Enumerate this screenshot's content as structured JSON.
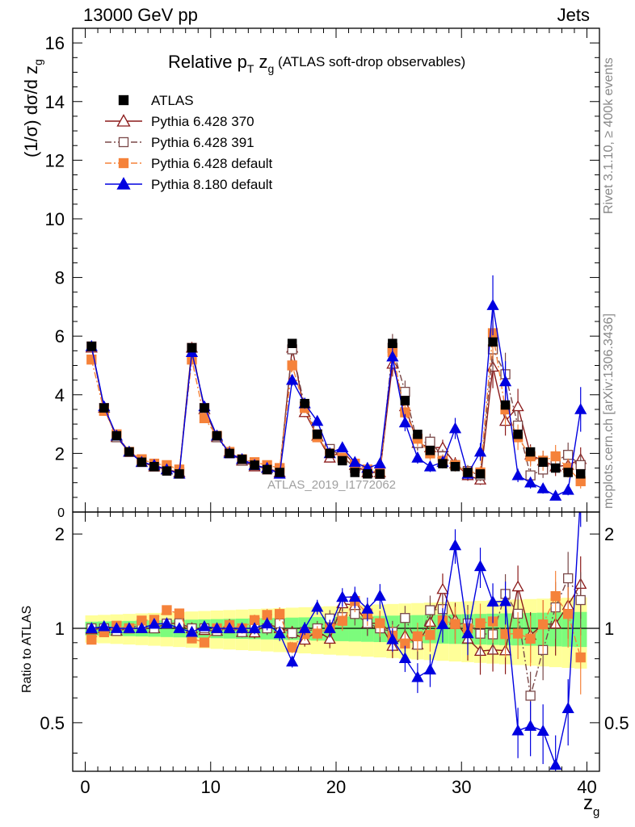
{
  "header": {
    "left": "13000 GeV pp",
    "right": "Jets"
  },
  "side": {
    "rivet": "Rivet 3.1.10, ≥ 400k events",
    "mcplots": "mcplots.cern.ch [arXiv:1306.3436]"
  },
  "chart_data": {
    "type": "scatter",
    "title_main": "Relative p",
    "title_sub": "T",
    "title_var": " z",
    "title_var_sub": "g",
    "title_paren": " (ATLAS soft-drop observables)",
    "watermark": "ATLAS_2019_I1772062",
    "ylabel": "(1/σ) dσ/d z",
    "ylabel_sub": "g",
    "ratio_ylabel": "Ratio to ATLAS",
    "xlabel": "z",
    "xlabel_sub": "g",
    "xlim": [
      -1,
      41
    ],
    "ylim": [
      0,
      16.5
    ],
    "ratio_ylim": [
      0.35,
      2.35
    ],
    "x_ticks": [
      "0",
      "10",
      "20",
      "30",
      "40"
    ],
    "y_ticks": [
      "2",
      "4",
      "6",
      "8",
      "10",
      "12",
      "14",
      "16"
    ],
    "y_tick_values": [
      2,
      4,
      6,
      8,
      10,
      12,
      14,
      16
    ],
    "ratio_ticks": [
      "0.5",
      "1",
      "2"
    ],
    "ratio_tick_values": [
      0.5,
      1,
      2
    ],
    "zero_label": "0",
    "x": [
      0.5,
      1.5,
      2.5,
      3.5,
      4.5,
      5.5,
      6.5,
      7.5,
      8.5,
      9.5,
      10.5,
      11.5,
      12.5,
      13.5,
      14.5,
      15.5,
      16.5,
      17.5,
      18.5,
      19.5,
      20.5,
      21.5,
      22.5,
      23.5,
      24.5,
      25.5,
      26.5,
      27.5,
      28.5,
      29.5,
      30.5,
      31.5,
      32.5,
      33.5,
      34.5,
      35.5,
      36.5,
      37.5,
      38.5,
      39.5
    ],
    "data": [
      5.65,
      3.55,
      2.6,
      2.05,
      1.7,
      1.55,
      1.4,
      1.3,
      5.6,
      3.55,
      2.6,
      2.0,
      1.8,
      1.6,
      1.45,
      1.35,
      5.75,
      3.7,
      2.65,
      2.0,
      1.75,
      1.35,
      1.3,
      1.3,
      5.75,
      3.8,
      2.65,
      2.1,
      1.65,
      1.55,
      1.35,
      1.3,
      5.8,
      3.65,
      2.65,
      2.05,
      1.7,
      1.5,
      1.35,
      1.3
    ],
    "series": [
      {
        "name": "Pythia 6.428 370",
        "color": "#8b1a1a",
        "marker": "triangle-open",
        "values": [
          5.6,
          3.55,
          2.55,
          2.05,
          1.7,
          1.55,
          1.45,
          1.35,
          5.6,
          3.5,
          2.55,
          2.05,
          1.75,
          1.55,
          1.5,
          1.35,
          5.6,
          3.4,
          2.6,
          1.85,
          2.1,
          1.6,
          1.35,
          1.35,
          5.05,
          3.6,
          2.35,
          2.2,
          2.2,
          1.65,
          1.25,
          1.1,
          4.95,
          3.1,
          3.6,
          1.95,
          1.75,
          1.55,
          1.6,
          1.8
        ]
      },
      {
        "name": "Pythia 6.428 391",
        "color": "#7a4848",
        "marker": "square-open",
        "values": [
          5.65,
          3.55,
          2.55,
          2.05,
          1.75,
          1.55,
          1.45,
          1.35,
          5.6,
          3.55,
          2.55,
          2.0,
          1.75,
          1.6,
          1.45,
          1.4,
          5.55,
          3.6,
          2.65,
          2.15,
          1.9,
          1.5,
          1.35,
          1.3,
          5.6,
          4.1,
          2.35,
          2.4,
          1.9,
          1.6,
          1.4,
          1.25,
          5.55,
          4.7,
          2.95,
          1.25,
          1.45,
          1.75,
          1.95,
          1.6
        ]
      },
      {
        "name": "Pythia 6.428 default",
        "color": "#f5823a",
        "marker": "square-filled",
        "values": [
          5.2,
          3.45,
          2.65,
          2.05,
          1.8,
          1.65,
          1.6,
          1.45,
          5.2,
          3.2,
          2.6,
          2.05,
          1.8,
          1.7,
          1.6,
          1.5,
          5.0,
          3.55,
          2.55,
          2.0,
          1.85,
          1.65,
          1.45,
          1.35,
          5.45,
          3.4,
          2.5,
          2.0,
          1.75,
          1.6,
          1.35,
          1.35,
          6.1,
          3.5,
          2.55,
          1.9,
          1.75,
          1.9,
          1.5,
          1.05
        ]
      },
      {
        "name": "Pythia 8.180 default",
        "color": "#0000e0",
        "marker": "triangle-filled",
        "values": [
          5.65,
          3.6,
          2.6,
          2.05,
          1.7,
          1.6,
          1.45,
          1.3,
          5.45,
          3.6,
          2.6,
          2.0,
          1.8,
          1.6,
          1.5,
          1.3,
          4.5,
          3.7,
          3.1,
          2.0,
          2.2,
          1.7,
          1.5,
          1.65,
          5.3,
          3.05,
          1.85,
          1.55,
          1.7,
          2.85,
          1.3,
          2.05,
          7.05,
          4.45,
          1.25,
          1.0,
          0.8,
          0.55,
          0.75,
          3.5
        ]
      }
    ],
    "legend": [
      {
        "label": "ATLAS",
        "color": "#000000",
        "marker": "square-filled",
        "style": "none"
      },
      {
        "label": "Pythia 6.428 370",
        "color": "#8b1a1a",
        "marker": "triangle-open",
        "style": "solid"
      },
      {
        "label": "Pythia 6.428 391",
        "color": "#7a4848",
        "marker": "square-open",
        "style": "dashdot"
      },
      {
        "label": "Pythia 6.428 default",
        "color": "#f5823a",
        "marker": "square-filled",
        "style": "dashdot"
      },
      {
        "label": "Pythia 8.180 default",
        "color": "#0000e0",
        "marker": "triangle-filled",
        "style": "solid"
      }
    ],
    "band_colors": {
      "outer": "#ffff99",
      "inner": "#7cfc7c"
    },
    "grid": false,
    "legend_position": "top-left"
  }
}
